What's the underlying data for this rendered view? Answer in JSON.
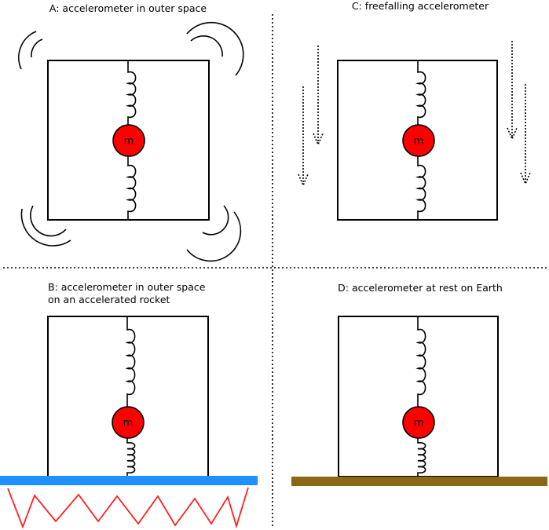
{
  "panels": {
    "a": {
      "caption": "A: accelerometer in outer space",
      "mass_label": "m"
    },
    "b": {
      "caption_line1": "B: accelerometer in outer space",
      "caption_line2": "on an accelerated rocket",
      "mass_label": "m"
    },
    "c": {
      "caption": "C: freefalling accelerometer",
      "mass_label": "m"
    },
    "d": {
      "caption": "D: accelerometer at rest on Earth",
      "mass_label": "m"
    }
  },
  "colors": {
    "mass": "#ff0000",
    "rocket_plate": "#1e90ff",
    "rocket_exhaust": "#ff2020",
    "earth_ground": "#8b6914",
    "line": "#000000"
  }
}
